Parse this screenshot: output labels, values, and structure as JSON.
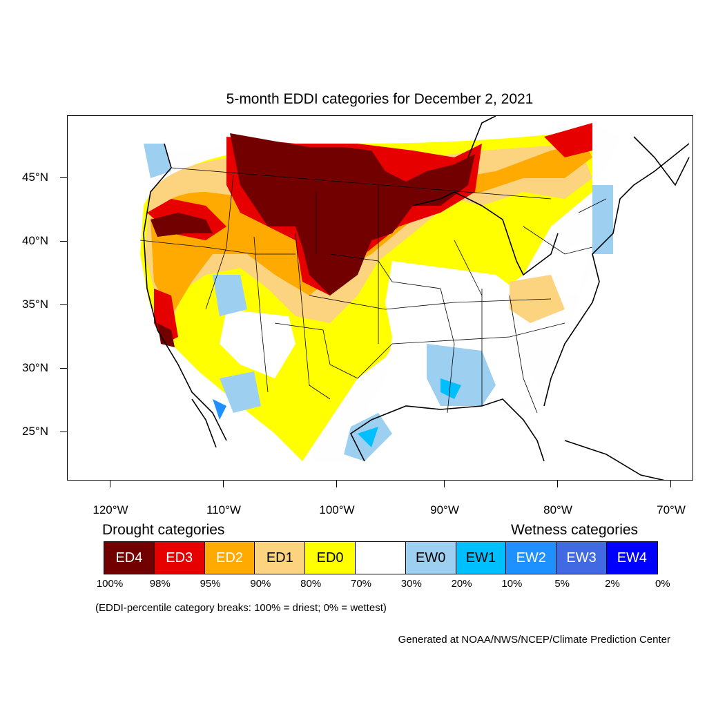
{
  "title": "5-month EDDI categories for December 2, 2021",
  "axes": {
    "y_labels": [
      "45°N",
      "40°N",
      "35°N",
      "30°N",
      "25°N"
    ],
    "x_labels": [
      "120°W",
      "110°W",
      "100°W",
      "90°W",
      "80°W",
      "70°W"
    ]
  },
  "legend": {
    "drought_heading": "Drought categories",
    "wetness_heading": "Wetness categories",
    "categories": [
      {
        "label": "ED4",
        "color": "#730000",
        "text_color": "#ffffff"
      },
      {
        "label": "ED3",
        "color": "#e60000",
        "text_color": "#ffffff"
      },
      {
        "label": "ED2",
        "color": "#ffaa00",
        "text_color": "#ffffff"
      },
      {
        "label": "ED1",
        "color": "#fcd37f",
        "text_color": "#000000"
      },
      {
        "label": "ED0",
        "color": "#ffff00",
        "text_color": "#000000"
      },
      {
        "label": "",
        "color": "#ffffff",
        "text_color": "#000000"
      },
      {
        "label": "EW0",
        "color": "#9ccff0",
        "text_color": "#000000"
      },
      {
        "label": "EW1",
        "color": "#00bfff",
        "text_color": "#000000"
      },
      {
        "label": "EW2",
        "color": "#1e90ff",
        "text_color": "#ffffff"
      },
      {
        "label": "EW3",
        "color": "#4169e1",
        "text_color": "#ffffff"
      },
      {
        "label": "EW4",
        "color": "#0000ff",
        "text_color": "#ffffff"
      }
    ],
    "percentiles": [
      "100%",
      "98%",
      "95%",
      "90%",
      "80%",
      "70%",
      "30%",
      "20%",
      "10%",
      "5%",
      "2%",
      "0%"
    ]
  },
  "note": "(EDDI-percentile category breaks: 100% = driest; 0% = wettest)",
  "credit": "Generated at NOAA/NWS/NCEP/Climate Prediction Center"
}
